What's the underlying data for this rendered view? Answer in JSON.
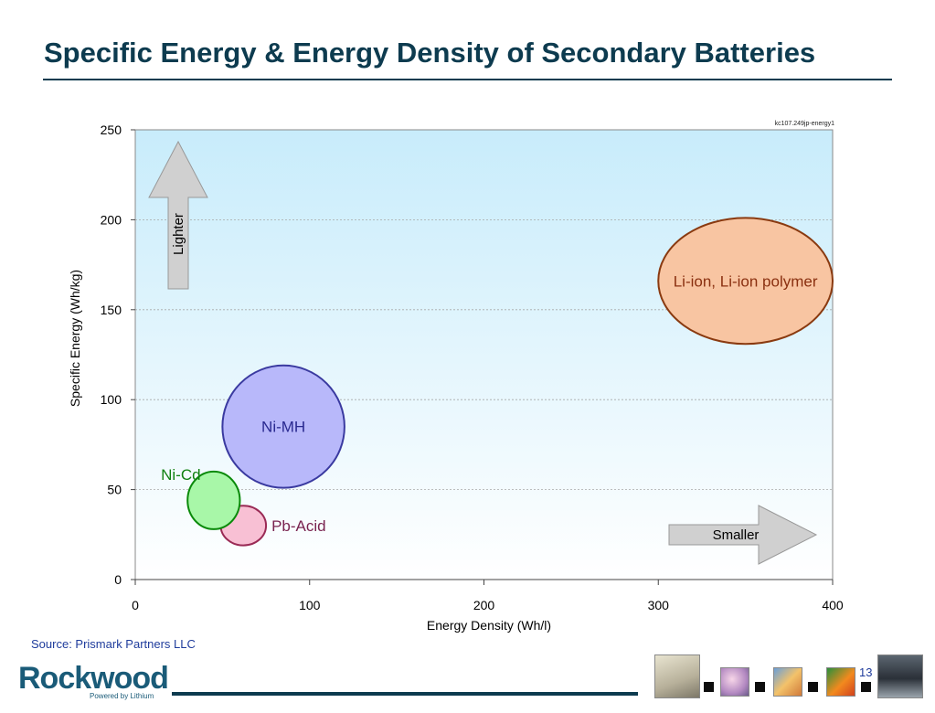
{
  "slide": {
    "title": "Specific Energy & Energy Density of Secondary Batteries",
    "source": "Source:  Prismark Partners LLC",
    "page_number": "13",
    "logo": {
      "name": "Rockwood",
      "tagline": "Powered by Lithium"
    }
  },
  "chart_data": {
    "type": "bubble",
    "code_label": "kc107.249jp-energy1",
    "xlabel": "Energy Density (Wh/l)",
    "ylabel": "Specific Energy (Wh/kg)",
    "xlim": [
      0,
      400
    ],
    "ylim": [
      0,
      250
    ],
    "xticks": [
      0,
      100,
      200,
      300,
      400
    ],
    "yticks": [
      0,
      50,
      100,
      150,
      200,
      250
    ],
    "grid": "horizontal",
    "background": {
      "top": "#c8ecfb",
      "bottom": "#ffffff"
    },
    "series": [
      {
        "name": "Pb-Acid",
        "cx": 62,
        "cy": 30,
        "rx": 13,
        "ry": 11,
        "fill": "#f8c0d4",
        "stroke": "#9a2a55",
        "label_color": "#7a2450"
      },
      {
        "name": "Ni-Cd",
        "cx": 45,
        "cy": 44,
        "rx": 15,
        "ry": 16,
        "fill": "#a8f7a8",
        "stroke": "#0a8a0a",
        "label_color": "#108010"
      },
      {
        "name": "Ni-MH",
        "cx": 85,
        "cy": 85,
        "rx": 35,
        "ry": 34,
        "fill": "#b8b8fa",
        "stroke": "#3a3aa0",
        "label_color": "#2a2a90"
      },
      {
        "name": "Li-ion, Li-ion polymer",
        "cx": 350,
        "cy": 166,
        "rx": 50,
        "ry": 35,
        "fill": "#f8c5a2",
        "stroke": "#8a3a10",
        "label_color": "#8a3010"
      }
    ],
    "annotations": [
      {
        "text": "Lighter",
        "direction": "up"
      },
      {
        "text": "Smaller",
        "direction": "right"
      }
    ]
  }
}
